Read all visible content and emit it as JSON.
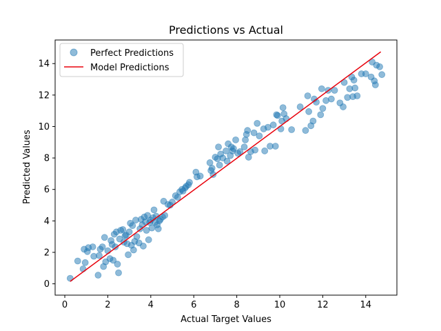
{
  "chart_data": {
    "type": "scatter",
    "title": "Predictions vs Actual",
    "xlabel": "Actual Target Values",
    "ylabel": "Predicted Values",
    "xlim": [
      -0.45,
      15.45
    ],
    "ylim": [
      -0.72,
      15.5
    ],
    "x_ticks": [
      0,
      2,
      4,
      6,
      8,
      10,
      12,
      14
    ],
    "y_ticks": [
      0,
      2,
      4,
      6,
      8,
      10,
      12,
      14
    ],
    "grid": false,
    "legend_position": "upper-left",
    "series": [
      {
        "name": "Perfect Predictions",
        "kind": "scatter",
        "color": "#1f77b4",
        "alpha": 0.5,
        "points": [
          [
            0.25,
            0.35
          ],
          [
            0.6,
            1.45
          ],
          [
            0.85,
            0.95
          ],
          [
            0.9,
            2.2
          ],
          [
            0.95,
            1.35
          ],
          [
            1.05,
            2.05
          ],
          [
            1.1,
            2.3
          ],
          [
            1.3,
            2.35
          ],
          [
            1.35,
            1.75
          ],
          [
            1.55,
            0.55
          ],
          [
            1.6,
            1.8
          ],
          [
            1.65,
            2.2
          ],
          [
            1.75,
            2.35
          ],
          [
            1.8,
            1.1
          ],
          [
            1.85,
            2.95
          ],
          [
            1.9,
            1.4
          ],
          [
            2.0,
            2.1
          ],
          [
            2.1,
            1.6
          ],
          [
            2.15,
            2.75
          ],
          [
            2.2,
            2.5
          ],
          [
            2.25,
            1.5
          ],
          [
            2.3,
            3.15
          ],
          [
            2.35,
            2.35
          ],
          [
            2.4,
            3.3
          ],
          [
            2.45,
            1.25
          ],
          [
            2.5,
            0.7
          ],
          [
            2.55,
            2.85
          ],
          [
            2.6,
            3.4
          ],
          [
            2.7,
            3.45
          ],
          [
            2.75,
            2.65
          ],
          [
            2.8,
            3.05
          ],
          [
            2.85,
            3.1
          ],
          [
            2.9,
            2.55
          ],
          [
            2.95,
            1.85
          ],
          [
            3.0,
            3.3
          ],
          [
            3.05,
            3.85
          ],
          [
            3.1,
            2.45
          ],
          [
            3.15,
            3.7
          ],
          [
            3.2,
            2.15
          ],
          [
            3.25,
            2.7
          ],
          [
            3.3,
            4.05
          ],
          [
            3.35,
            3.0
          ],
          [
            3.45,
            2.6
          ],
          [
            3.5,
            3.5
          ],
          [
            3.55,
            4.1
          ],
          [
            3.6,
            3.75
          ],
          [
            3.65,
            2.4
          ],
          [
            3.7,
            4.25
          ],
          [
            3.75,
            3.95
          ],
          [
            3.8,
            3.4
          ],
          [
            3.85,
            4.35
          ],
          [
            3.9,
            2.8
          ],
          [
            3.95,
            3.9
          ],
          [
            4.0,
            4.05
          ],
          [
            4.05,
            3.55
          ],
          [
            4.1,
            4.2
          ],
          [
            4.15,
            4.7
          ],
          [
            4.2,
            3.9
          ],
          [
            4.25,
            4.3
          ],
          [
            4.3,
            3.75
          ],
          [
            4.35,
            3.5
          ],
          [
            4.4,
            4.0
          ],
          [
            4.45,
            4.1
          ],
          [
            4.55,
            4.25
          ],
          [
            4.6,
            5.25
          ],
          [
            4.65,
            4.35
          ],
          [
            4.8,
            5.05
          ],
          [
            4.9,
            5.0
          ],
          [
            5.0,
            5.2
          ],
          [
            5.15,
            5.6
          ],
          [
            5.25,
            5.5
          ],
          [
            5.35,
            5.85
          ],
          [
            5.45,
            6.0
          ],
          [
            5.5,
            5.9
          ],
          [
            5.6,
            6.1
          ],
          [
            5.65,
            6.2
          ],
          [
            5.75,
            6.3
          ],
          [
            5.8,
            6.45
          ],
          [
            6.1,
            7.1
          ],
          [
            6.15,
            6.8
          ],
          [
            6.3,
            6.85
          ],
          [
            6.75,
            7.7
          ],
          [
            6.8,
            7.2
          ],
          [
            6.85,
            7.35
          ],
          [
            6.9,
            6.95
          ],
          [
            7.0,
            8.05
          ],
          [
            7.1,
            7.95
          ],
          [
            7.15,
            8.7
          ],
          [
            7.2,
            7.55
          ],
          [
            7.25,
            8.25
          ],
          [
            7.35,
            8.0
          ],
          [
            7.5,
            8.45
          ],
          [
            7.55,
            7.8
          ],
          [
            7.6,
            8.9
          ],
          [
            7.7,
            8.15
          ],
          [
            7.75,
            8.7
          ],
          [
            7.8,
            8.45
          ],
          [
            7.85,
            8.6
          ],
          [
            7.95,
            9.15
          ],
          [
            8.05,
            8.3
          ],
          [
            8.15,
            8.4
          ],
          [
            8.35,
            8.7
          ],
          [
            8.4,
            9.15
          ],
          [
            8.45,
            9.5
          ],
          [
            8.5,
            9.75
          ],
          [
            8.55,
            8.05
          ],
          [
            8.65,
            8.4
          ],
          [
            8.8,
            9.6
          ],
          [
            8.85,
            8.5
          ],
          [
            8.95,
            10.2
          ],
          [
            9.05,
            9.4
          ],
          [
            9.25,
            9.85
          ],
          [
            9.3,
            8.45
          ],
          [
            9.45,
            9.95
          ],
          [
            9.55,
            8.75
          ],
          [
            9.7,
            10.1
          ],
          [
            9.8,
            8.75
          ],
          [
            9.85,
            10.75
          ],
          [
            9.9,
            10.7
          ],
          [
            10.05,
            9.85
          ],
          [
            10.1,
            10.35
          ],
          [
            10.15,
            11.2
          ],
          [
            10.2,
            10.8
          ],
          [
            10.3,
            10.5
          ],
          [
            10.55,
            9.8
          ],
          [
            10.95,
            11.25
          ],
          [
            11.2,
            9.75
          ],
          [
            11.3,
            11.95
          ],
          [
            11.35,
            10.95
          ],
          [
            11.45,
            10.05
          ],
          [
            11.55,
            10.35
          ],
          [
            11.6,
            11.75
          ],
          [
            11.7,
            11.55
          ],
          [
            11.9,
            10.75
          ],
          [
            11.95,
            12.4
          ],
          [
            12.0,
            11.15
          ],
          [
            12.15,
            11.65
          ],
          [
            12.25,
            12.3
          ],
          [
            12.4,
            11.75
          ],
          [
            12.55,
            12.3
          ],
          [
            12.8,
            11.5
          ],
          [
            12.95,
            11.25
          ],
          [
            13.0,
            12.8
          ],
          [
            13.15,
            11.85
          ],
          [
            13.25,
            12.4
          ],
          [
            13.35,
            13.15
          ],
          [
            13.4,
            11.9
          ],
          [
            13.45,
            12.95
          ],
          [
            13.5,
            12.45
          ],
          [
            13.6,
            11.95
          ],
          [
            13.8,
            13.35
          ],
          [
            14.0,
            13.35
          ],
          [
            14.25,
            13.15
          ],
          [
            14.3,
            14.1
          ],
          [
            14.4,
            12.9
          ],
          [
            14.45,
            12.65
          ],
          [
            14.5,
            13.9
          ],
          [
            14.65,
            13.8
          ],
          [
            14.75,
            13.3
          ]
        ]
      },
      {
        "name": "Model Predictions",
        "kind": "line",
        "color": "#e8000b",
        "points": [
          [
            0.25,
            0.15
          ],
          [
            14.7,
            14.75
          ]
        ]
      }
    ]
  }
}
